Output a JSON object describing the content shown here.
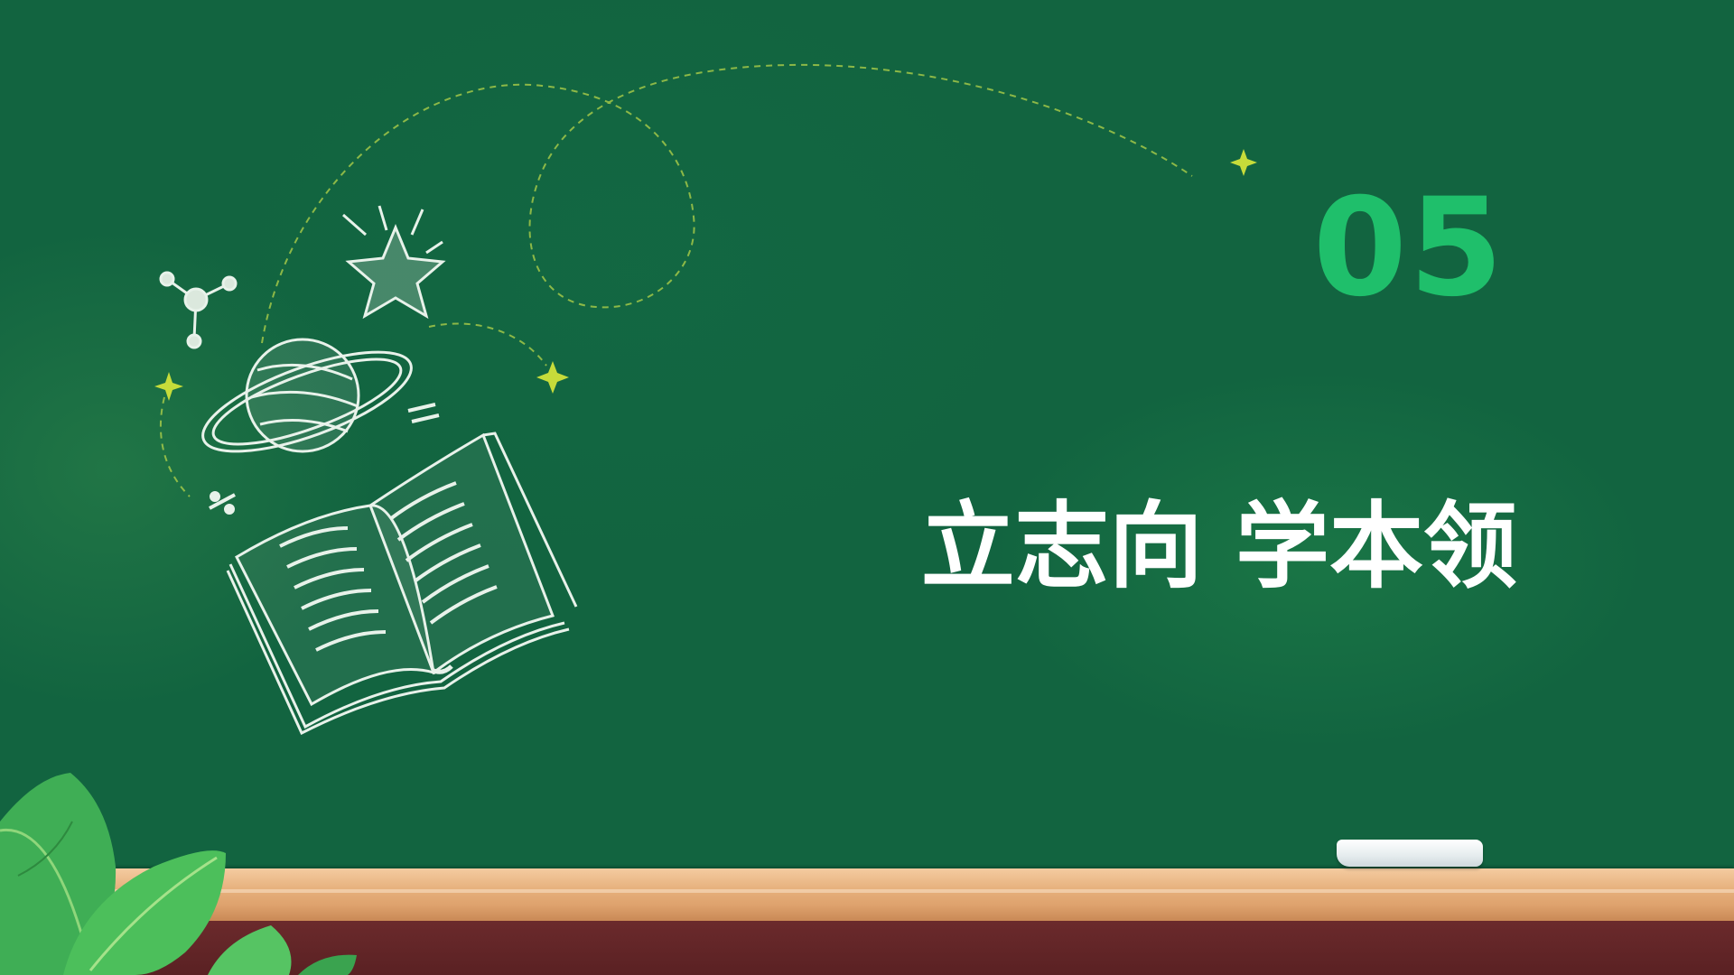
{
  "slide": {
    "number": "05",
    "title": "立志向 学本领"
  },
  "colors": {
    "board": "#126440",
    "number": "#1fbf6b",
    "title": "#ffffff",
    "sparkle": "#c6dc3a",
    "ledge": "#e6b07c",
    "base": "#5a2123"
  },
  "icons": [
    "open-book-icon",
    "planet-icon",
    "star-icon",
    "molecule-icon",
    "sparkle-icon",
    "leaf-icon",
    "chalk-icon"
  ]
}
